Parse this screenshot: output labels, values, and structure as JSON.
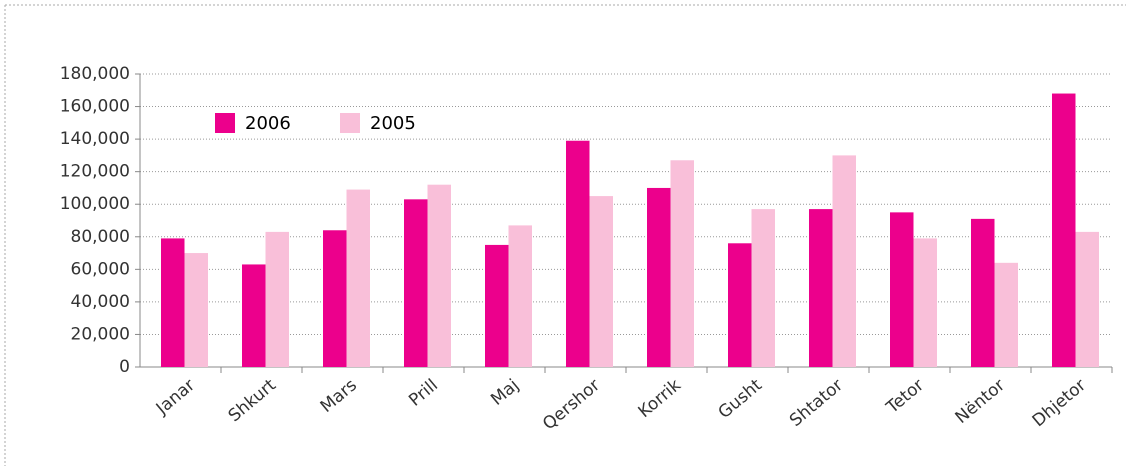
{
  "chart_data": {
    "type": "bar",
    "categories": [
      "Janar",
      "Shkurt",
      "Mars",
      "Prill",
      "Maj",
      "Qershor",
      "Korrik",
      "Gusht",
      "Shtator",
      "Tetor",
      "Nëntor",
      "Dhjetor"
    ],
    "series": [
      {
        "name": "2006",
        "color": "#ec008c",
        "values": [
          79000,
          63000,
          84000,
          103000,
          75000,
          139000,
          110000,
          76000,
          97000,
          95000,
          91000,
          168000
        ]
      },
      {
        "name": "2005",
        "color": "#f9bfd9",
        "values": [
          70000,
          83000,
          109000,
          112000,
          87000,
          105000,
          127000,
          97000,
          130000,
          79000,
          64000,
          83000
        ]
      }
    ],
    "ylim": [
      0,
      180000
    ],
    "yticks": [
      0,
      {
        "value": 20000,
        "label": "20,000"
      },
      {
        "value": 40000,
        "label": "40,000"
      },
      {
        "value": 60000,
        "label": "60,000"
      },
      {
        "value": 80000,
        "label": "80,000"
      },
      {
        "value": 100000,
        "label": "100,000"
      },
      {
        "value": 120000,
        "label": "120,000"
      },
      {
        "value": 140000,
        "label": "140,000"
      },
      {
        "value": 160000,
        "label": "160,000"
      },
      {
        "value": 180000,
        "label": "180,000"
      }
    ],
    "grid": true,
    "legend": "top-left"
  }
}
